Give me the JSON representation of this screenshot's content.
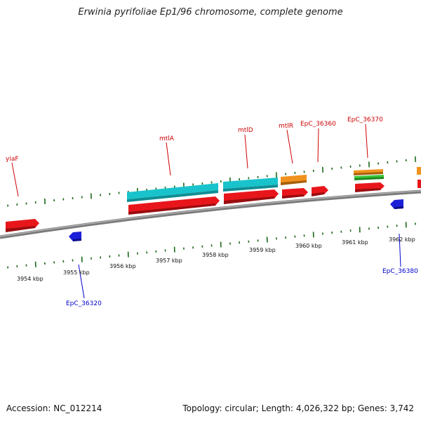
{
  "title": "Erwinia pyrifoliae Ep1/96 chromosome, complete genome",
  "footer": {
    "accession": "Accession: NC_012214",
    "summary": "Topology: circular; Length: 4,026,322 bp; Genes: 3,742"
  },
  "colors": {
    "backbone": "#8a8a8a",
    "forward_cds": "#e8161b",
    "reverse_cds": "#1c1fd8",
    "cyan_feature": "#19c3cc",
    "orange_feature": "#f0921e",
    "green_feature": "#3cc83c",
    "tick": "#1a6a1a",
    "forward_label": "#cc0000",
    "reverse_label": "#0000cc"
  },
  "scale": {
    "ticks": [
      {
        "label": "3954 kbp"
      },
      {
        "label": "3955 kbp"
      },
      {
        "label": "3956 kbp"
      },
      {
        "label": "3957 kbp"
      },
      {
        "label": "3958 kbp"
      },
      {
        "label": "3959 kbp"
      },
      {
        "label": "3960 kbp"
      },
      {
        "label": "3961 kbp"
      },
      {
        "label": "3962 kbp"
      }
    ]
  },
  "gene_labels": [
    {
      "name": "yiaF",
      "strand": "forward"
    },
    {
      "name": "mtlA",
      "strand": "forward"
    },
    {
      "name": "mtlD",
      "strand": "forward"
    },
    {
      "name": "mtlR",
      "strand": "forward"
    },
    {
      "name": "EpC_36360",
      "strand": "forward"
    },
    {
      "name": "EpC_36370",
      "strand": "forward"
    },
    {
      "name": "EpC_36320",
      "strand": "reverse"
    },
    {
      "name": "EpC_36380",
      "strand": "reverse"
    }
  ]
}
